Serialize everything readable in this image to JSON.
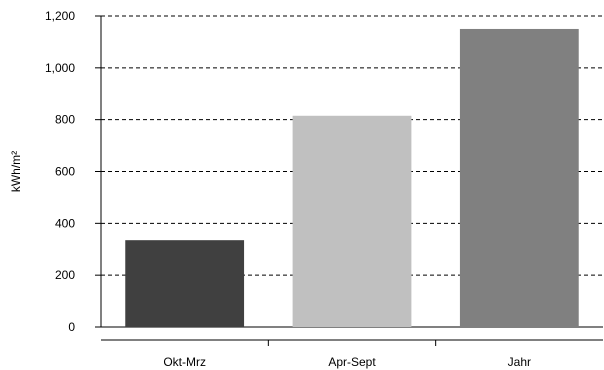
{
  "chart_data": {
    "type": "bar",
    "title": "",
    "xlabel": "",
    "ylabel": "kWh/m²",
    "categories": [
      "Okt-Mrz",
      "Apr-Sept",
      "Jahr"
    ],
    "values": [
      335,
      815,
      1150
    ],
    "colors": [
      "#404040",
      "#c0c0c0",
      "#808080"
    ],
    "ylim": [
      0,
      1200
    ],
    "yticks": [
      0,
      200,
      400,
      600,
      800,
      1000,
      1200
    ],
    "ytick_labels": [
      "0",
      "200",
      "400",
      "600",
      "800",
      "1,000",
      "1,200"
    ],
    "grid": true,
    "grid_style": "dashed",
    "legend": "none"
  }
}
